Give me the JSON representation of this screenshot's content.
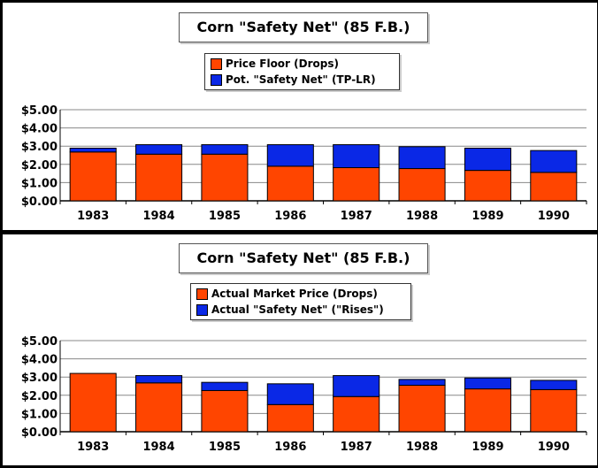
{
  "colors": {
    "lower": "#ff4500",
    "upper": "#0a28e6"
  },
  "chart_data": [
    {
      "type": "bar",
      "stacked": true,
      "title": "Corn \"Safety Net\" (85 F.B.)",
      "categories": [
        "1983",
        "1984",
        "1985",
        "1986",
        "1987",
        "1988",
        "1989",
        "1990"
      ],
      "series": [
        {
          "name": "Price Floor (Drops)",
          "values": [
            2.68,
            2.56,
            2.56,
            1.9,
            1.82,
            1.77,
            1.67,
            1.56
          ]
        },
        {
          "name": "Pot. \"Safety Net\" (TP-LR)",
          "values": [
            0.21,
            0.52,
            0.52,
            1.18,
            1.26,
            1.2,
            1.22,
            1.2
          ]
        }
      ],
      "yticks": [
        "$0.00",
        "$1.00",
        "$2.00",
        "$3.00",
        "$4.00",
        "$5.00"
      ],
      "ylim": [
        0,
        5
      ],
      "grid": true,
      "legend": "top-center"
    },
    {
      "type": "bar",
      "stacked": true,
      "title": "Corn \"Safety Net\" (85 F.B.)",
      "categories": [
        "1983",
        "1984",
        "1985",
        "1986",
        "1987",
        "1988",
        "1989",
        "1990"
      ],
      "series": [
        {
          "name": "Actual Market Price (Drops)",
          "values": [
            3.2,
            2.68,
            2.26,
            1.49,
            1.93,
            2.55,
            2.35,
            2.31
          ]
        },
        {
          "name": "Actual \"Safety Net\" (\"Rises\")",
          "values": [
            0.0,
            0.4,
            0.45,
            1.14,
            1.15,
            0.32,
            0.6,
            0.51
          ]
        }
      ],
      "yticks": [
        "$0.00",
        "$1.00",
        "$2.00",
        "$3.00",
        "$4.00",
        "$5.00"
      ],
      "ylim": [
        0,
        5
      ],
      "grid": true,
      "legend": "top-center"
    }
  ]
}
